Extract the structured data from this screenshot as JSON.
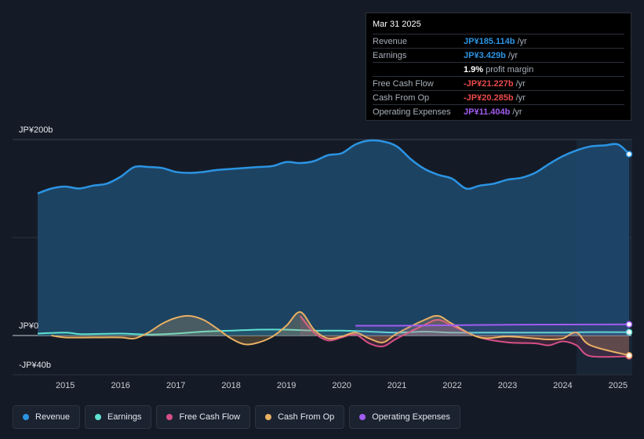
{
  "tooltip": {
    "date": "Mar 31 2025",
    "rows": [
      {
        "label": "Revenue",
        "value": "JP¥185.114b",
        "suffix": "/yr",
        "color": "#2b94e3"
      },
      {
        "label": "Earnings",
        "value": "JP¥3.429b",
        "suffix": "/yr",
        "color": "#2b94e3"
      },
      {
        "label": "",
        "value": "1.9%",
        "suffix": "profit margin",
        "color": "#ffffff"
      },
      {
        "label": "Free Cash Flow",
        "value": "-JP¥21.227b",
        "suffix": "/yr",
        "color": "#ea4a4a"
      },
      {
        "label": "Cash From Op",
        "value": "-JP¥20.285b",
        "suffix": "/yr",
        "color": "#ea4a4a"
      },
      {
        "label": "Operating Expenses",
        "value": "JP¥11.404b",
        "suffix": "/yr",
        "color": "#a15cf0"
      }
    ]
  },
  "legend": [
    {
      "label": "Revenue",
      "color": "#2b94e3"
    },
    {
      "label": "Earnings",
      "color": "#5fe0d0"
    },
    {
      "label": "Free Cash Flow",
      "color": "#d64f86"
    },
    {
      "label": "Cash From Op",
      "color": "#e8b063"
    },
    {
      "label": "Operating Expenses",
      "color": "#a15cf0"
    }
  ],
  "chart_data": {
    "type": "area",
    "title": "",
    "ylabel": "",
    "ylim": [
      -40,
      200
    ],
    "y_tick_labels": {
      "top": "JP¥200b",
      "zero": "JP¥0",
      "bottom": "-JP¥40b"
    },
    "x_ticks": [
      2015,
      2016,
      2017,
      2018,
      2019,
      2020,
      2021,
      2022,
      2023,
      2024,
      2025
    ],
    "xlim": [
      2014.5,
      2025.2
    ],
    "forecast_start": 2024.25,
    "series": [
      {
        "name": "Revenue",
        "color": "#2b94e3",
        "points": [
          [
            2014.5,
            145
          ],
          [
            2014.75,
            150
          ],
          [
            2015.0,
            152
          ],
          [
            2015.25,
            150
          ],
          [
            2015.5,
            153
          ],
          [
            2015.75,
            155
          ],
          [
            2016.0,
            162
          ],
          [
            2016.25,
            172
          ],
          [
            2016.5,
            172
          ],
          [
            2016.75,
            171
          ],
          [
            2017.0,
            167
          ],
          [
            2017.25,
            166
          ],
          [
            2017.5,
            167
          ],
          [
            2017.75,
            169
          ],
          [
            2018.0,
            170
          ],
          [
            2018.25,
            171
          ],
          [
            2018.5,
            172
          ],
          [
            2018.75,
            173
          ],
          [
            2019.0,
            177
          ],
          [
            2019.25,
            176
          ],
          [
            2019.5,
            178
          ],
          [
            2019.75,
            184
          ],
          [
            2020.0,
            186
          ],
          [
            2020.25,
            195
          ],
          [
            2020.5,
            199
          ],
          [
            2020.75,
            198
          ],
          [
            2021.0,
            193
          ],
          [
            2021.25,
            180
          ],
          [
            2021.5,
            170
          ],
          [
            2021.75,
            164
          ],
          [
            2022.0,
            160
          ],
          [
            2022.25,
            150
          ],
          [
            2022.5,
            153
          ],
          [
            2022.75,
            155
          ],
          [
            2023.0,
            159
          ],
          [
            2023.25,
            161
          ],
          [
            2023.5,
            166
          ],
          [
            2023.75,
            175
          ],
          [
            2024.0,
            183
          ],
          [
            2024.25,
            189
          ],
          [
            2024.5,
            193
          ],
          [
            2024.75,
            194
          ],
          [
            2025.0,
            195
          ],
          [
            2025.2,
            185.114
          ]
        ]
      },
      {
        "name": "Earnings",
        "color": "#5fe0d0",
        "points": [
          [
            2014.5,
            2
          ],
          [
            2015.0,
            3
          ],
          [
            2015.25,
            1.5
          ],
          [
            2015.5,
            1.5
          ],
          [
            2016.0,
            2
          ],
          [
            2016.5,
            1
          ],
          [
            2017.0,
            2
          ],
          [
            2017.5,
            4
          ],
          [
            2018.0,
            5
          ],
          [
            2018.5,
            6
          ],
          [
            2019.0,
            6
          ],
          [
            2019.5,
            5
          ],
          [
            2020.0,
            5
          ],
          [
            2020.5,
            4
          ],
          [
            2021.0,
            3
          ],
          [
            2021.5,
            4
          ],
          [
            2022.0,
            3
          ],
          [
            2022.5,
            3
          ],
          [
            2023.0,
            3
          ],
          [
            2023.5,
            3
          ],
          [
            2024.0,
            3
          ],
          [
            2024.5,
            3.5
          ],
          [
            2025.2,
            3.429
          ]
        ]
      },
      {
        "name": "Free Cash Flow",
        "color": "#d64f86",
        "points": [
          [
            2019.25,
            20
          ],
          [
            2019.5,
            3
          ],
          [
            2019.75,
            -5
          ],
          [
            2020.0,
            -2
          ],
          [
            2020.25,
            1
          ],
          [
            2020.5,
            -8
          ],
          [
            2020.75,
            -11
          ],
          [
            2021.0,
            -3
          ],
          [
            2021.5,
            11
          ],
          [
            2021.75,
            16
          ],
          [
            2022.0,
            10
          ],
          [
            2022.5,
            -2
          ],
          [
            2023.0,
            -7
          ],
          [
            2023.5,
            -8
          ],
          [
            2023.75,
            -10
          ],
          [
            2024.0,
            -6
          ],
          [
            2024.25,
            -10
          ],
          [
            2024.5,
            -21
          ],
          [
            2025.2,
            -21.227
          ]
        ]
      },
      {
        "name": "Cash From Op",
        "color": "#e8b063",
        "points": [
          [
            2014.75,
            0
          ],
          [
            2015.0,
            -2
          ],
          [
            2015.5,
            -2
          ],
          [
            2016.0,
            -2
          ],
          [
            2016.25,
            -3
          ],
          [
            2016.5,
            3
          ],
          [
            2016.75,
            12
          ],
          [
            2017.0,
            18
          ],
          [
            2017.25,
            20
          ],
          [
            2017.5,
            16
          ],
          [
            2017.75,
            7
          ],
          [
            2018.0,
            -3
          ],
          [
            2018.25,
            -9
          ],
          [
            2018.5,
            -7
          ],
          [
            2018.75,
            -1
          ],
          [
            2019.0,
            10
          ],
          [
            2019.25,
            24
          ],
          [
            2019.5,
            6
          ],
          [
            2019.75,
            -3
          ],
          [
            2020.0,
            -1
          ],
          [
            2020.25,
            3
          ],
          [
            2020.5,
            -3
          ],
          [
            2020.75,
            -7
          ],
          [
            2021.0,
            2
          ],
          [
            2021.5,
            16
          ],
          [
            2021.75,
            20
          ],
          [
            2022.0,
            12
          ],
          [
            2022.5,
            -2
          ],
          [
            2023.0,
            -1
          ],
          [
            2023.5,
            -3
          ],
          [
            2023.75,
            -4
          ],
          [
            2024.0,
            -3
          ],
          [
            2024.25,
            3
          ],
          [
            2024.5,
            -10
          ],
          [
            2025.2,
            -20.285
          ]
        ]
      },
      {
        "name": "Operating Expenses",
        "color": "#a15cf0",
        "points": [
          [
            2020.25,
            10
          ],
          [
            2021.0,
            10
          ],
          [
            2022.0,
            10.5
          ],
          [
            2023.0,
            11
          ],
          [
            2024.0,
            11.2
          ],
          [
            2025.2,
            11.404
          ]
        ]
      }
    ]
  }
}
